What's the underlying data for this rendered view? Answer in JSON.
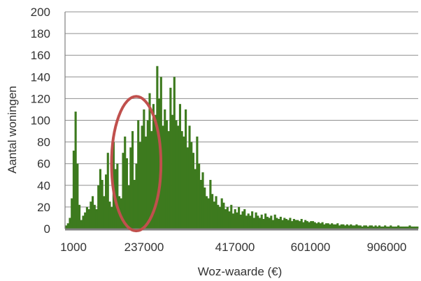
{
  "chart_data": {
    "type": "bar",
    "xlabel": "Woz-waarde (€)",
    "ylabel": "Aantal woningen",
    "ylim": [
      0,
      200
    ],
    "yticks": [
      0,
      20,
      40,
      60,
      80,
      100,
      120,
      140,
      160,
      180,
      200
    ],
    "xtick_labels": [
      "1000",
      "237000",
      "417000",
      "601000",
      "906000"
    ],
    "grid": "horizontal",
    "bar_color": "#3d7a1e",
    "highlight_color": "#c0504d",
    "series": [
      {
        "values": [
          3,
          5,
          10,
          28,
          72,
          108,
          60,
          22,
          8,
          12,
          15,
          20,
          18,
          25,
          30,
          22,
          18,
          40,
          55,
          45,
          30,
          50,
          70,
          25,
          20,
          80,
          55,
          60,
          30,
          28,
          70,
          85,
          65,
          40,
          75,
          90,
          45,
          60,
          100,
          80,
          95,
          110,
          85,
          100,
          125,
          90,
          115,
          105,
          150,
          120,
          140,
          95,
          110,
          100,
          90,
          130,
          105,
          140,
          100,
          95,
          115,
          90,
          85,
          110,
          75,
          95,
          80,
          70,
          55,
          85,
          60,
          45,
          52,
          38,
          30,
          28,
          45,
          32,
          25,
          30,
          22,
          20,
          28,
          24,
          18,
          20,
          16,
          22,
          14,
          18,
          15,
          20,
          13,
          16,
          18,
          12,
          14,
          12,
          16,
          10,
          15,
          12,
          10,
          13,
          9,
          14,
          11,
          10,
          12,
          8,
          13,
          10,
          9,
          11,
          8,
          10,
          9,
          8,
          10,
          7,
          9,
          8,
          8,
          7,
          9,
          6,
          8,
          7,
          6,
          7,
          7,
          6,
          5,
          6,
          5,
          6,
          4,
          5,
          5,
          4,
          5,
          4,
          4,
          5,
          3,
          4,
          4,
          3,
          4,
          3,
          4,
          3,
          3,
          4,
          3,
          3,
          2,
          3,
          3,
          2,
          3,
          3,
          2,
          3,
          2,
          3,
          2,
          2,
          3,
          2,
          2,
          3,
          2,
          2,
          2,
          3,
          2,
          2,
          2,
          2,
          2,
          3,
          2,
          2,
          2,
          2
        ]
      }
    ],
    "highlight_ellipse": {
      "center_x_bin": 37,
      "center_y": 60,
      "half_width_bins": 13,
      "half_height": 62
    }
  }
}
